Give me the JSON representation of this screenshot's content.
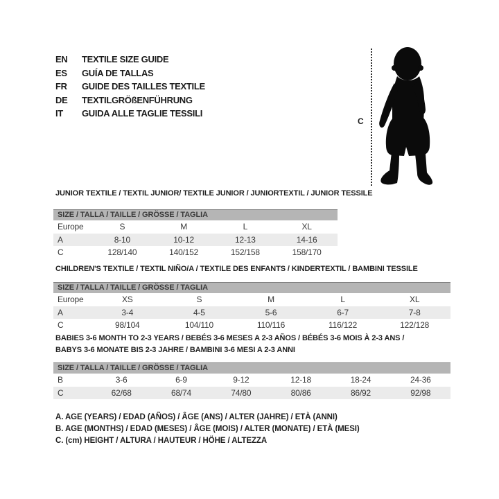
{
  "languages": [
    {
      "code": "EN",
      "label": "TEXTILE SIZE GUIDE"
    },
    {
      "code": "ES",
      "label": "GUÍA DE TALLAS"
    },
    {
      "code": "FR",
      "label": "GUIDE DES TAILLES TEXTILE"
    },
    {
      "code": "DE",
      "label": "TEXTILGRÖßENFÜHRUNG"
    },
    {
      "code": "IT",
      "label": "GUIDA ALLE TAGLIE TESSILI"
    }
  ],
  "figure": {
    "measure_label": "C",
    "silhouette_icon": "toddler-silhouette-icon",
    "silhouette_color": "#0b0b0b"
  },
  "sections": [
    {
      "name": "junior",
      "title_lines": [
        "JUNIOR TEXTILE / TEXTIL JUNIOR/ TEXTILE JUNIOR / JUNIORTEXTIL / JUNIOR TESSILE"
      ],
      "table": {
        "header": "SIZE / TALLA / TAILLE / GRÖSSE / TAGLIA",
        "rows": [
          {
            "label": "Europe",
            "cells": [
              "S",
              "M",
              "L",
              "XL"
            ],
            "shaded": false
          },
          {
            "label": "A",
            "cells": [
              "8-10",
              "10-12",
              "12-13",
              "14-16"
            ],
            "shaded": true
          },
          {
            "label": "C",
            "cells": [
              "128/140",
              "140/152",
              "152/158",
              "158/170"
            ],
            "shaded": false
          }
        ]
      }
    },
    {
      "name": "children",
      "title_lines": [
        "CHILDREN'S TEXTILE / TEXTIL NIÑO/A / TEXTILE DES ENFANTS / KINDERTEXTIL / BAMBINI TESSILE"
      ],
      "table": {
        "header": "SIZE / TALLA / TAILLE / GRÖSSE / TAGLIA",
        "rows": [
          {
            "label": "Europe",
            "cells": [
              "XS",
              "S",
              "M",
              "L",
              "XL"
            ],
            "shaded": false
          },
          {
            "label": "A",
            "cells": [
              "3-4",
              "4-5",
              "5-6",
              "6-7",
              "7-8"
            ],
            "shaded": true
          },
          {
            "label": "C",
            "cells": [
              "98/104",
              "104/110",
              "110/116",
              "116/122",
              "122/128"
            ],
            "shaded": false
          }
        ]
      }
    },
    {
      "name": "babies",
      "title_lines": [
        "BABIES 3-6 MONTH TO 2-3 YEARS / BEBÉS 3-6 MESES A 2-3 AÑOS / BÉBÉS 3-6 MOIS À 2-3 ANS /",
        "BABYS 3-6 MONATE BIS 2-3 JAHRE / BAMBINI 3-6 MESI A 2-3 ANNI"
      ],
      "table": {
        "header": "SIZE / TALLA / TAILLE / GRÖSSE / TAGLIA",
        "rows": [
          {
            "label": "B",
            "cells": [
              "3-6",
              "6-9",
              "9-12",
              "12-18",
              "18-24",
              "24-36"
            ],
            "shaded": false
          },
          {
            "label": "C",
            "cells": [
              "62/68",
              "68/74",
              "74/80",
              "80/86",
              "86/92",
              "92/98"
            ],
            "shaded": true
          }
        ]
      }
    }
  ],
  "legend": [
    "A. AGE (YEARS) / EDAD (AÑOS) / ÂGE (ANS) / ALTER (JAHRE) / ETÀ (ANNI)",
    "B. AGE (MONTHS) / EDAD (MESES) / ÂGE (MOIS) / ALTER (MONATE) / ETÀ (MESI)",
    "C. (cm) HEIGHT / ALTURA / HAUTEUR / HÖHE / ALTEZZA"
  ],
  "colors": {
    "table_header_bg": "#b5b5b5",
    "table_header_border": "#7f7f7f",
    "shaded_row_bg": "#ebebeb",
    "text": "#383838",
    "title_text": "#1f1f1f"
  }
}
